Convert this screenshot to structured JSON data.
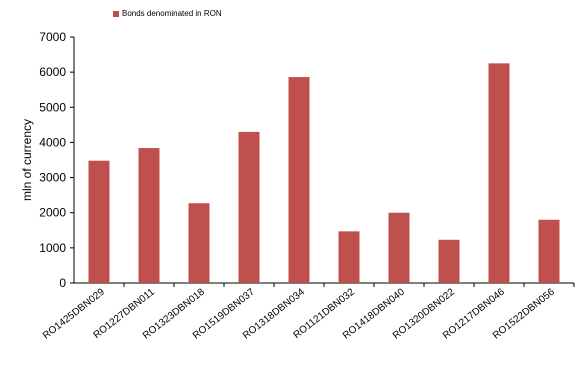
{
  "chart_data": {
    "type": "bar",
    "categories": [
      "RO1425DBN029",
      "RO1227DBN011",
      "RO1323DBN018",
      "RO1519DBN037",
      "RO1318DBN034",
      "RO1121DBN032",
      "RO1418DBN040",
      "RO1320DBN022",
      "RO1217DBN046",
      "RO1522DBN056"
    ],
    "series": [
      {
        "name": "Bonds denominated in RON",
        "values": [
          3480,
          3840,
          2270,
          4300,
          5860,
          1470,
          2000,
          1230,
          6250,
          1800
        ],
        "color": "#c0504d"
      }
    ],
    "xlabel": "",
    "ylabel": "mln of currency",
    "ylim": [
      0,
      7000
    ],
    "yticks": [
      0,
      1000,
      2000,
      3000,
      4000,
      5000,
      6000,
      7000
    ],
    "grid": false,
    "legend_position": "top-left"
  }
}
